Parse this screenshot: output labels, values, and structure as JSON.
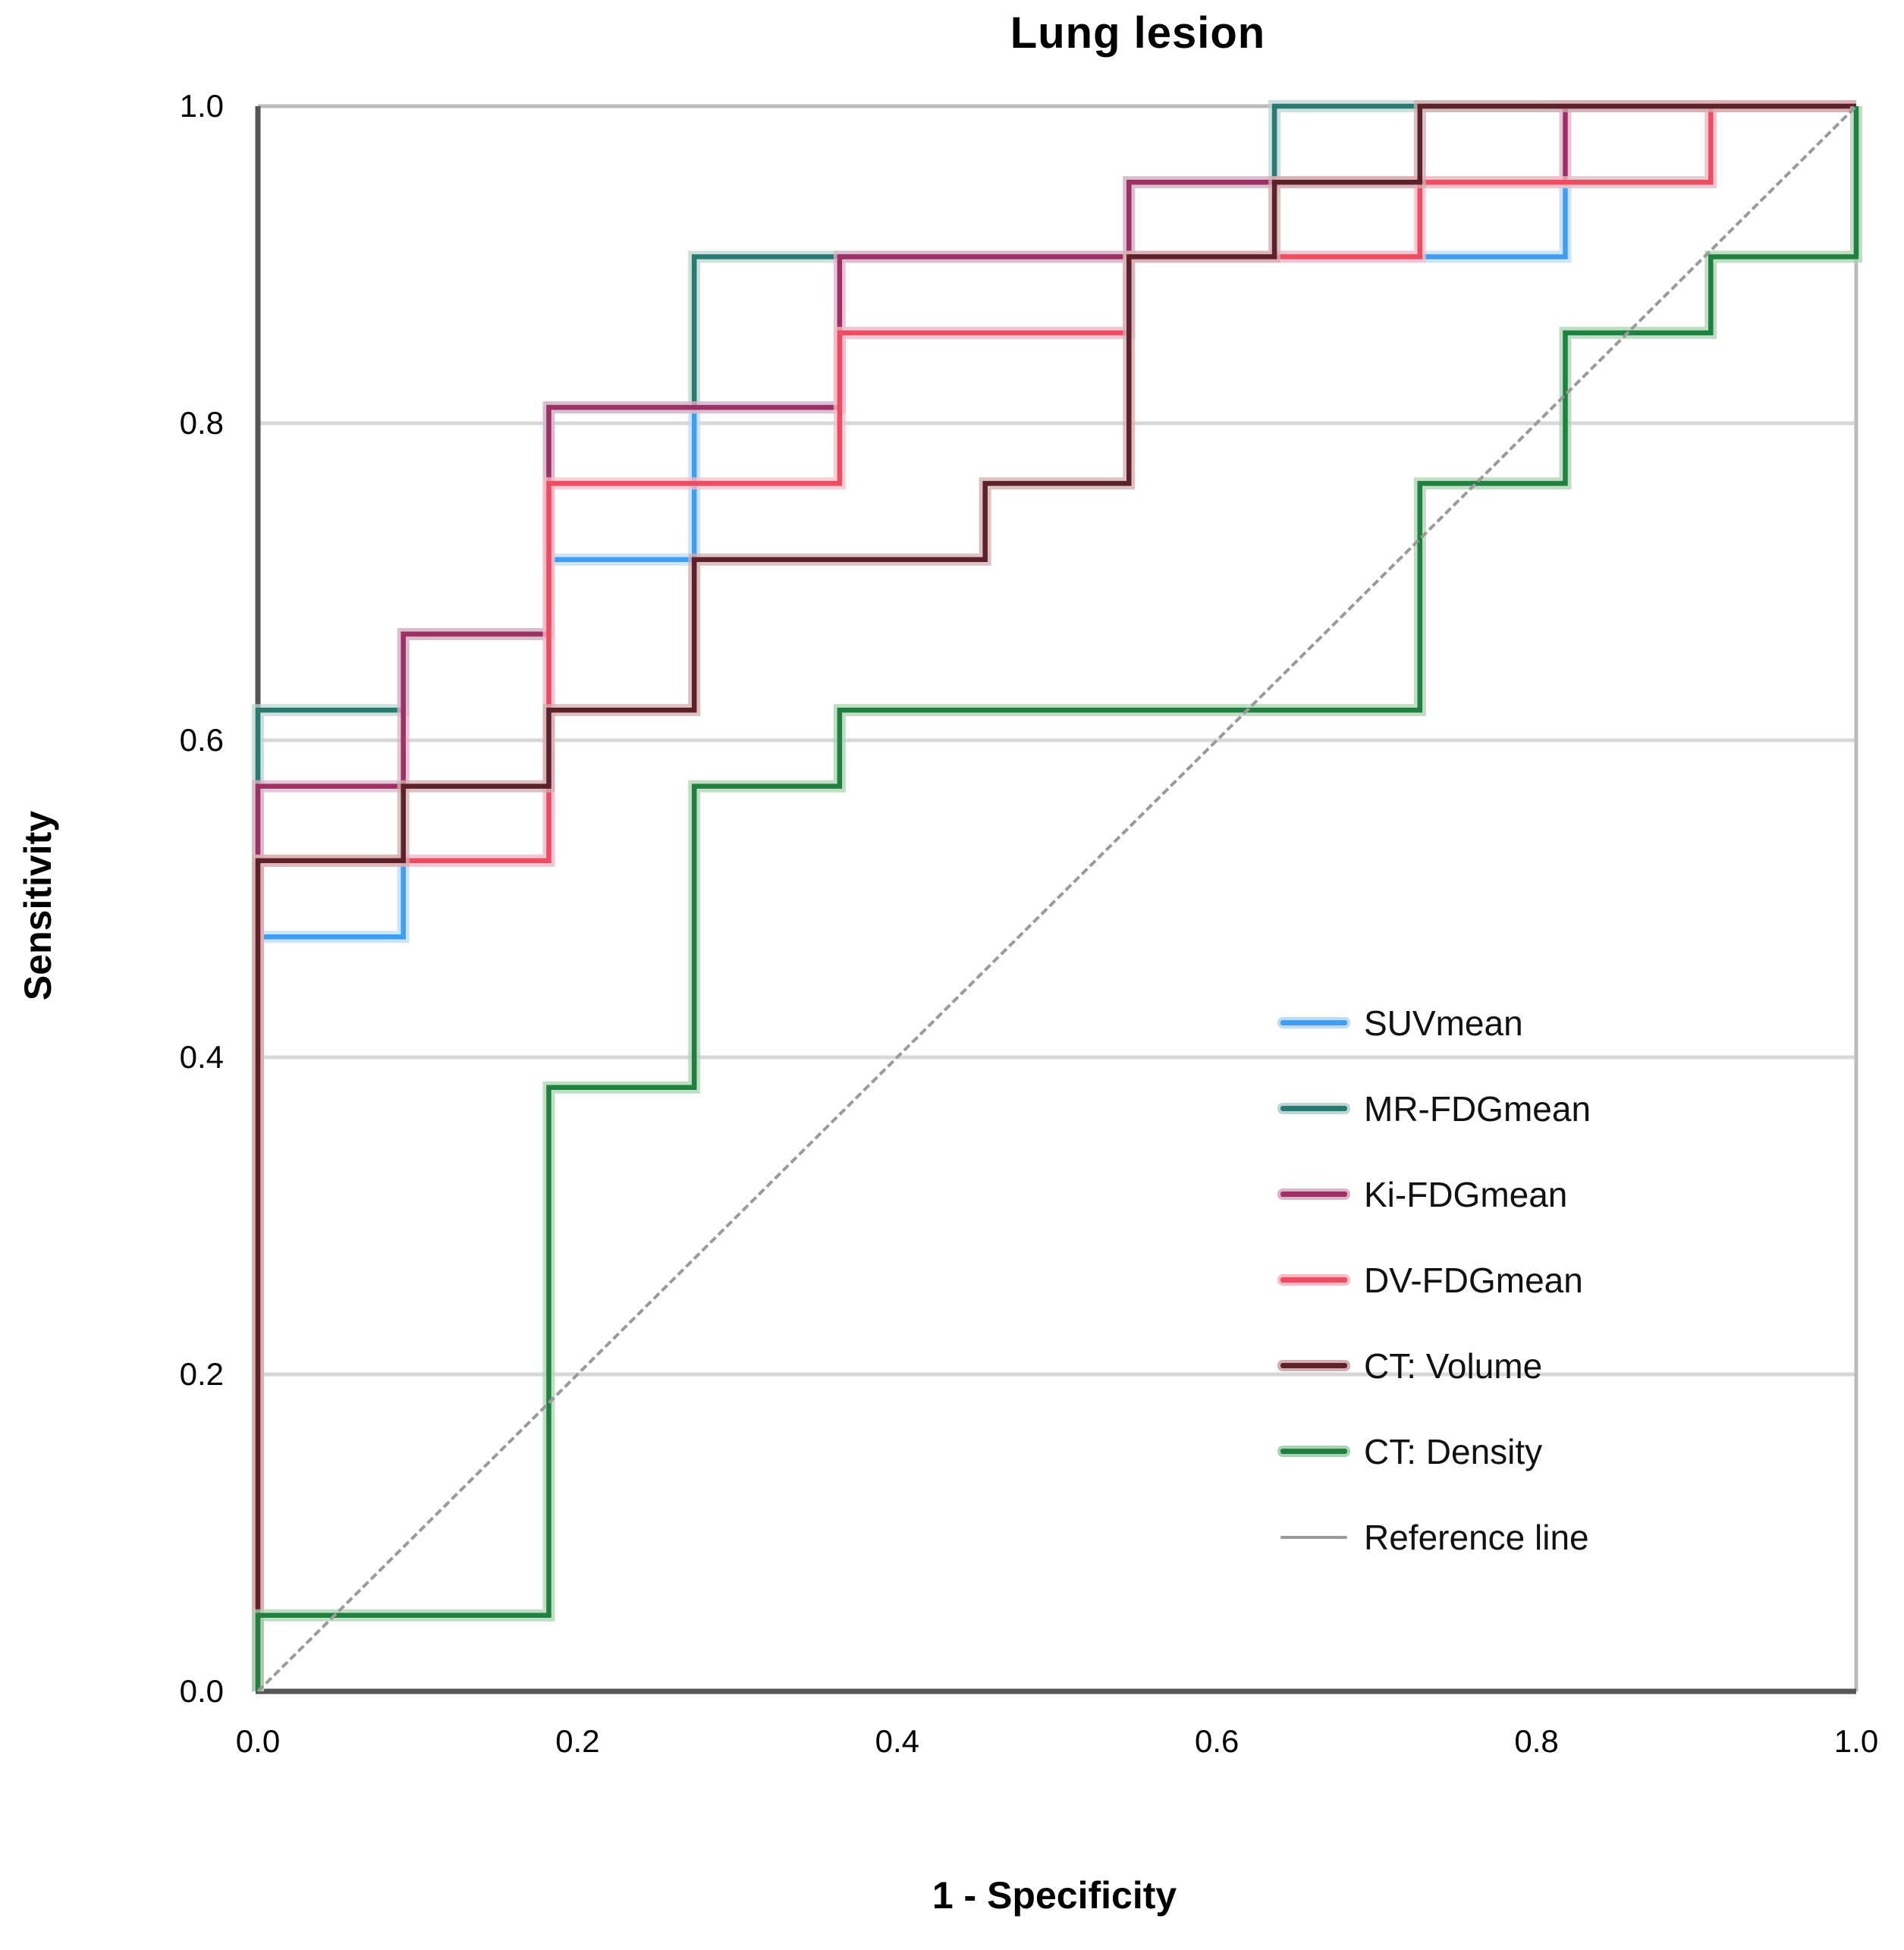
{
  "chart_data": {
    "type": "line",
    "subtype": "roc-step",
    "title": "Lung lesion",
    "xlabel": "1 - Specificity",
    "ylabel": "Sensitivity",
    "xlim": [
      0.0,
      1.0
    ],
    "ylim": [
      0.0,
      1.0
    ],
    "xticks": [
      "0.0",
      "0.2",
      "0.4",
      "0.6",
      "0.8",
      "1.0"
    ],
    "yticks": [
      "0.0",
      "0.2",
      "0.4",
      "0.6",
      "0.8",
      "1.0"
    ],
    "grid": "horizontal",
    "gridline_color": "#d8d8d8",
    "axis_color": "#555555",
    "frame_color": "#bbbbbb",
    "legend_position": "inside-right",
    "series": [
      {
        "name": "SUVmean",
        "color": "#3f9ef2",
        "halo": "#bcdcf8",
        "points": [
          [
            0,
            0
          ],
          [
            0,
            0.476
          ],
          [
            0.091,
            0.476
          ],
          [
            0.091,
            0.524
          ],
          [
            0.182,
            0.524
          ],
          [
            0.182,
            0.714
          ],
          [
            0.273,
            0.714
          ],
          [
            0.273,
            0.81
          ],
          [
            0.364,
            0.81
          ],
          [
            0.364,
            0.857
          ],
          [
            0.545,
            0.857
          ],
          [
            0.545,
            0.905
          ],
          [
            0.818,
            0.905
          ],
          [
            0.818,
            0.952
          ],
          [
            0.909,
            0.952
          ],
          [
            0.909,
            1
          ],
          [
            1,
            1
          ]
        ]
      },
      {
        "name": "MR-FDGmean",
        "color": "#2a7a74",
        "halo": "#bed6d3",
        "points": [
          [
            0,
            0
          ],
          [
            0,
            0.619
          ],
          [
            0.091,
            0.619
          ],
          [
            0.091,
            0.667
          ],
          [
            0.182,
            0.667
          ],
          [
            0.182,
            0.81
          ],
          [
            0.273,
            0.81
          ],
          [
            0.273,
            0.905
          ],
          [
            0.545,
            0.905
          ],
          [
            0.545,
            0.952
          ],
          [
            0.636,
            0.952
          ],
          [
            0.636,
            1
          ],
          [
            1,
            1
          ]
        ]
      },
      {
        "name": "Ki-FDGmean",
        "color": "#9e3066",
        "halo": "#dcb4c8",
        "points": [
          [
            0,
            0
          ],
          [
            0,
            0.571
          ],
          [
            0.091,
            0.571
          ],
          [
            0.091,
            0.667
          ],
          [
            0.182,
            0.667
          ],
          [
            0.182,
            0.81
          ],
          [
            0.364,
            0.81
          ],
          [
            0.364,
            0.905
          ],
          [
            0.545,
            0.905
          ],
          [
            0.545,
            0.952
          ],
          [
            0.818,
            0.952
          ],
          [
            0.818,
            1
          ],
          [
            1,
            1
          ]
        ]
      },
      {
        "name": "DV-FDGmean",
        "color": "#ef4b61",
        "halo": "#f9bcc5",
        "points": [
          [
            0,
            0
          ],
          [
            0,
            0.524
          ],
          [
            0.182,
            0.524
          ],
          [
            0.182,
            0.762
          ],
          [
            0.364,
            0.762
          ],
          [
            0.364,
            0.857
          ],
          [
            0.545,
            0.857
          ],
          [
            0.545,
            0.905
          ],
          [
            0.727,
            0.905
          ],
          [
            0.727,
            0.952
          ],
          [
            0.909,
            0.952
          ],
          [
            0.909,
            1
          ],
          [
            1,
            1
          ]
        ]
      },
      {
        "name": "CT: Volume",
        "color": "#5c2129",
        "halo": "#d3adaf",
        "points": [
          [
            0,
            0
          ],
          [
            0,
            0.524
          ],
          [
            0.091,
            0.524
          ],
          [
            0.091,
            0.571
          ],
          [
            0.182,
            0.571
          ],
          [
            0.182,
            0.619
          ],
          [
            0.273,
            0.619
          ],
          [
            0.273,
            0.714
          ],
          [
            0.455,
            0.714
          ],
          [
            0.455,
            0.762
          ],
          [
            0.545,
            0.762
          ],
          [
            0.545,
            0.905
          ],
          [
            0.636,
            0.905
          ],
          [
            0.636,
            0.952
          ],
          [
            0.727,
            0.952
          ],
          [
            0.727,
            1
          ],
          [
            1,
            1
          ]
        ]
      },
      {
        "name": "CT: Density",
        "color": "#1f8040",
        "halo": "#a9d3b0",
        "points": [
          [
            0,
            0
          ],
          [
            0,
            0.048
          ],
          [
            0.182,
            0.048
          ],
          [
            0.182,
            0.381
          ],
          [
            0.273,
            0.381
          ],
          [
            0.273,
            0.571
          ],
          [
            0.364,
            0.571
          ],
          [
            0.364,
            0.619
          ],
          [
            0.727,
            0.619
          ],
          [
            0.727,
            0.762
          ],
          [
            0.818,
            0.762
          ],
          [
            0.818,
            0.857
          ],
          [
            0.909,
            0.857
          ],
          [
            0.909,
            0.905
          ],
          [
            1,
            0.905
          ],
          [
            1,
            1
          ]
        ]
      },
      {
        "name": "Reference line",
        "color": "#9a9a9a",
        "halo": null,
        "reference": true,
        "points": [
          [
            0,
            0
          ],
          [
            1,
            1
          ]
        ]
      }
    ]
  },
  "labels": {
    "title": "Lung lesion",
    "xlabel": "1 - Specificity",
    "ylabel": "Sensitivity"
  }
}
